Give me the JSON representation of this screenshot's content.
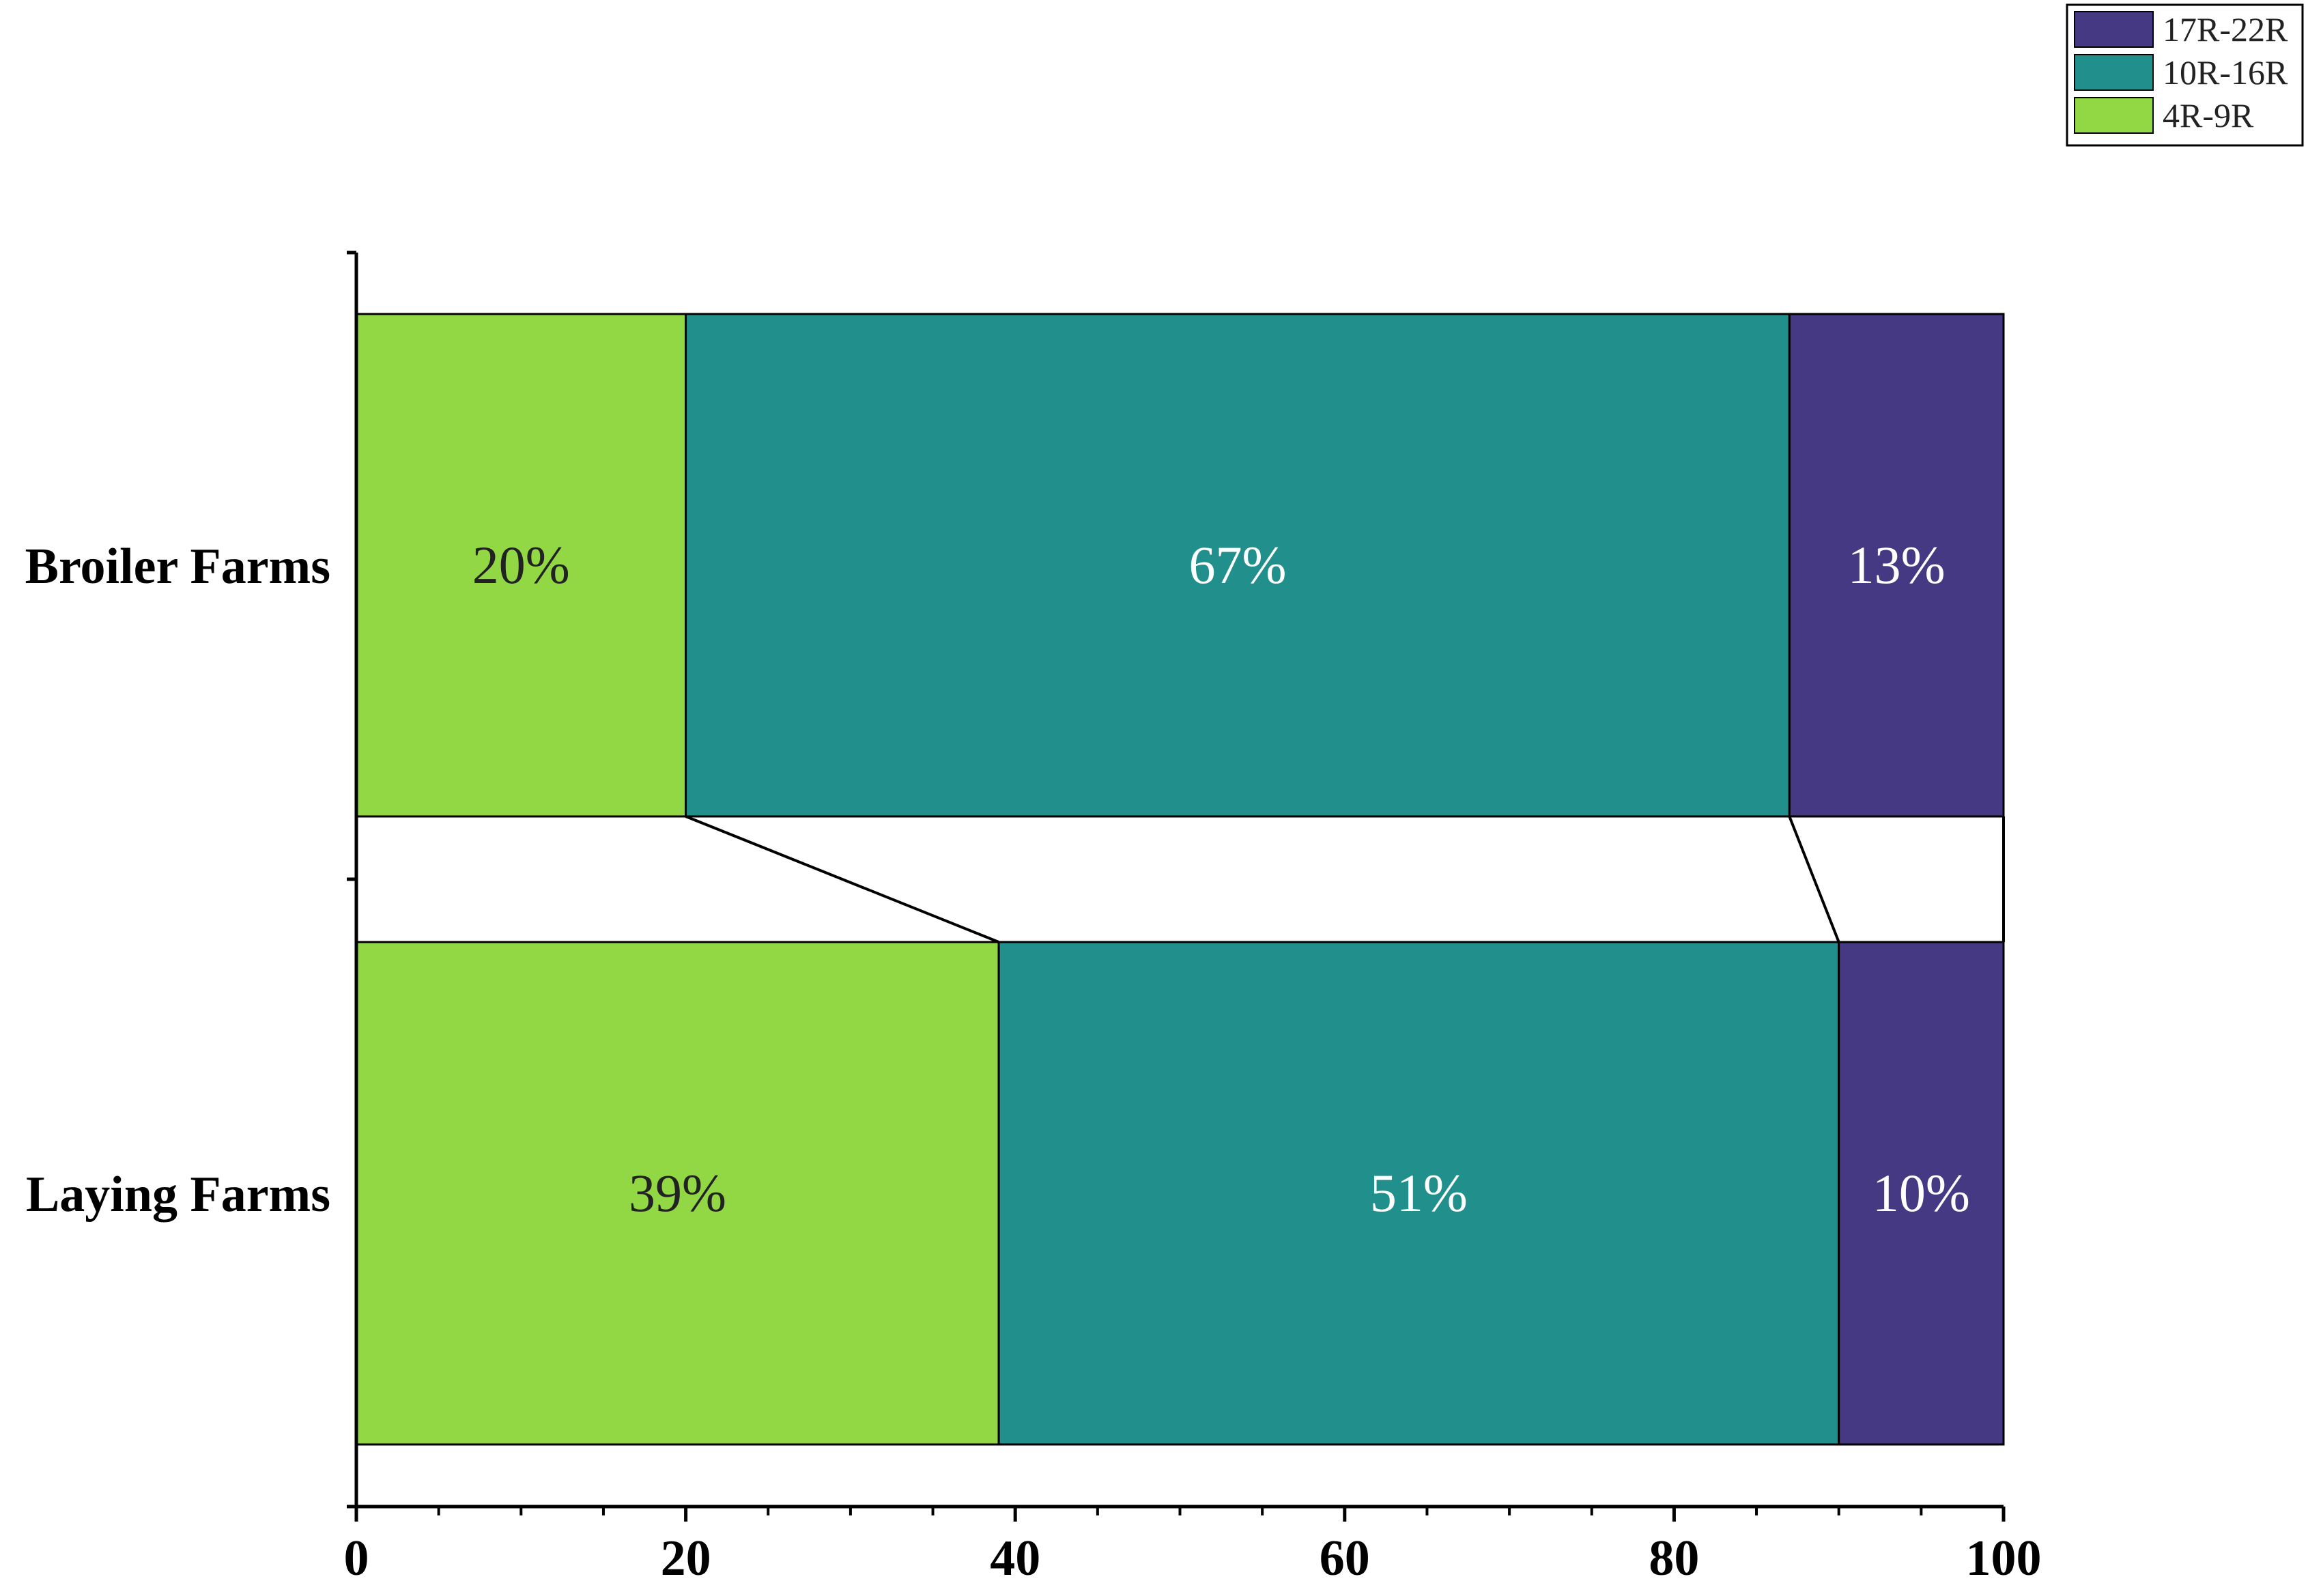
{
  "chart_data": {
    "type": "bar",
    "orientation": "horizontal",
    "stacked": true,
    "categories": [
      "Broiler Farms",
      "Laying Farms"
    ],
    "series": [
      {
        "name": "4R-9R",
        "color": "#92d844",
        "label_color": "#222222",
        "values": [
          20,
          39
        ],
        "labels": [
          "20%",
          "39%"
        ]
      },
      {
        "name": "10R-16R",
        "color": "#21908c",
        "label_color": "#ffffff",
        "values": [
          67,
          51
        ],
        "labels": [
          "67%",
          "51%"
        ]
      },
      {
        "name": "17R-22R",
        "color": "#443982",
        "label_color": "#ffffff",
        "values": [
          13,
          10
        ],
        "labels": [
          "13%",
          "10%"
        ]
      }
    ],
    "legend": {
      "position": "top-right",
      "order": [
        "17R-22R",
        "10R-16R",
        "4R-9R"
      ]
    },
    "x_ticks": [
      "0",
      "20",
      "40",
      "60",
      "80",
      "100"
    ],
    "xlim": [
      0,
      100
    ],
    "connector_lines": true,
    "grid": false,
    "title": "",
    "xlabel": "",
    "ylabel": ""
  }
}
